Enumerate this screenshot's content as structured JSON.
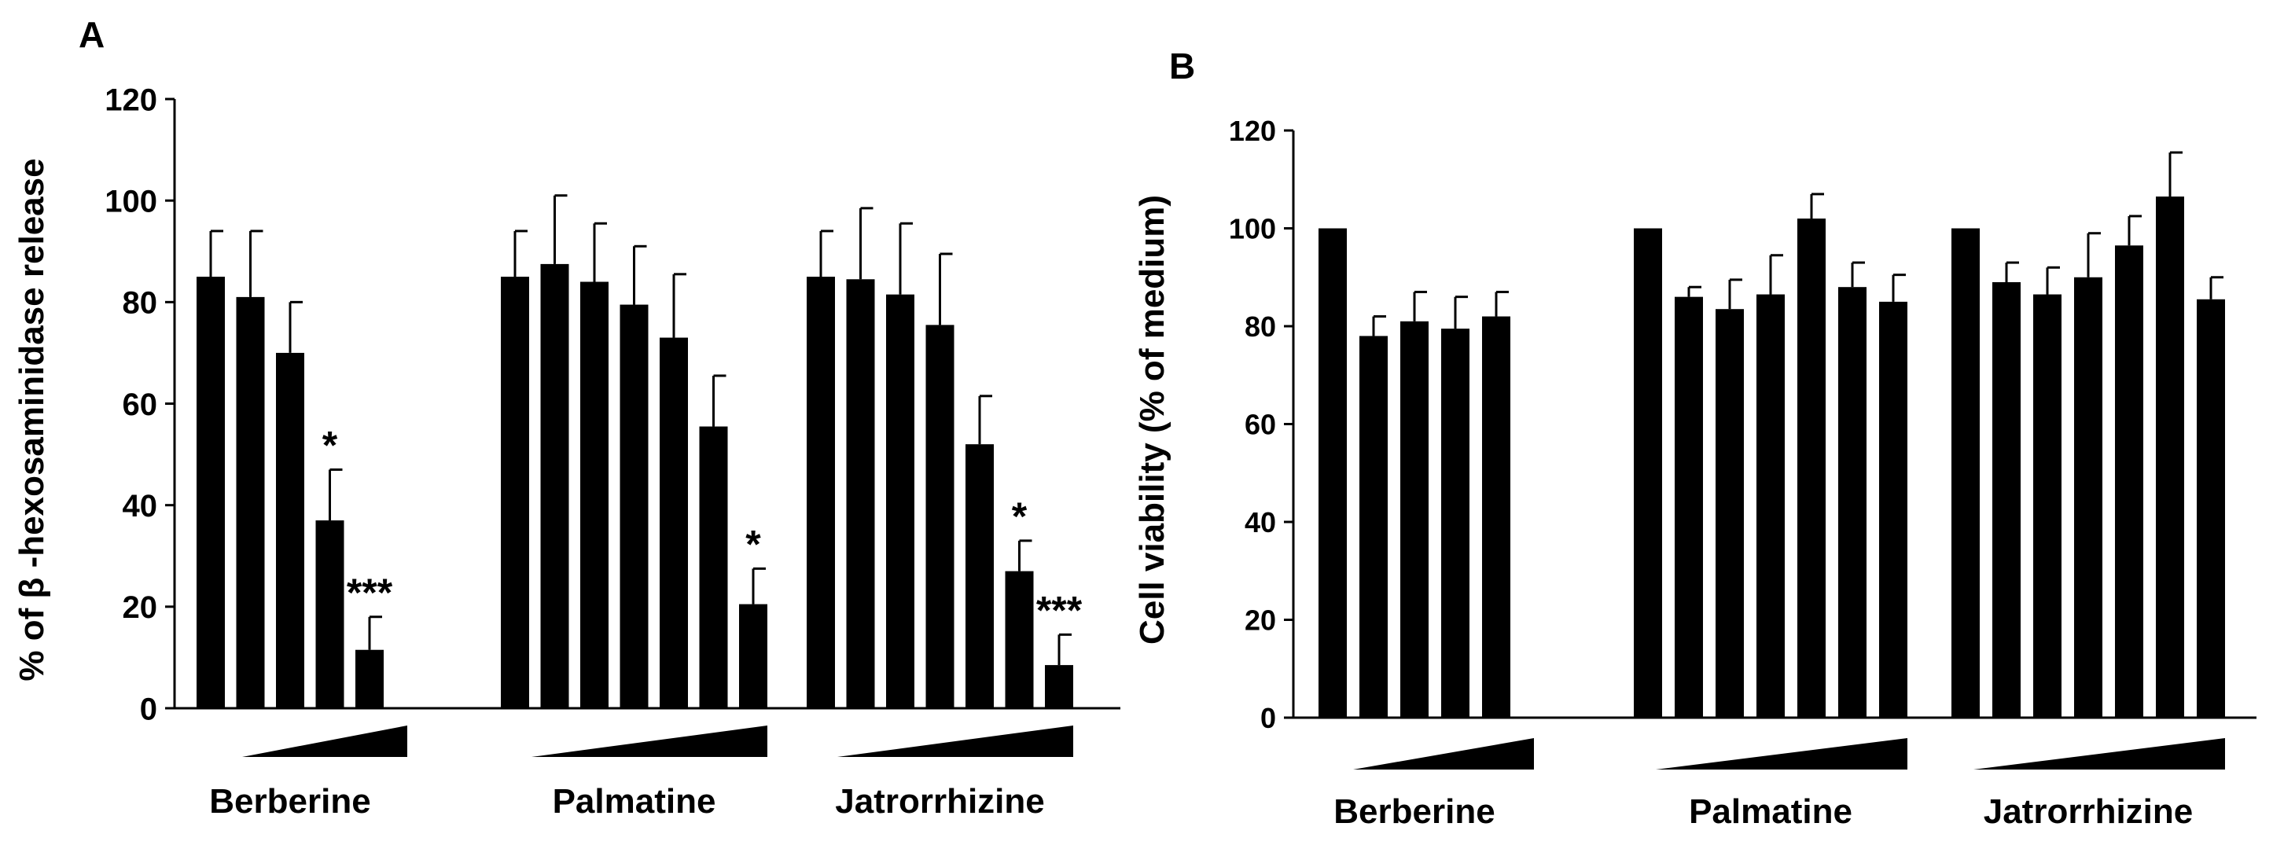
{
  "colors": {
    "bar": "#000000",
    "axis": "#000000",
    "background": "#ffffff"
  },
  "chart_data": [
    {
      "panel_label": "A",
      "type": "bar",
      "ylabel": "% of β -hexosaminidase release",
      "ylim": [
        0,
        120
      ],
      "yticks": [
        "0",
        "20",
        "40",
        "60",
        "80",
        "100",
        "120"
      ],
      "groups": [
        {
          "name": "Berberine",
          "values": [
            85,
            81,
            70,
            37,
            11.5
          ],
          "errors": [
            9,
            13,
            10,
            10,
            6.5
          ],
          "annotations": [
            "",
            "",
            "",
            "*",
            "***"
          ]
        },
        {
          "name": "Palmatine",
          "values": [
            85,
            87.5,
            84,
            79.5,
            73,
            55.5,
            20.5
          ],
          "errors": [
            9,
            13.5,
            11.5,
            11.5,
            12.5,
            10,
            7
          ],
          "annotations": [
            "",
            "",
            "",
            "",
            "",
            "",
            "*"
          ]
        },
        {
          "name": "Jatrorrhizine",
          "values": [
            85,
            84.5,
            81.5,
            75.5,
            52,
            27,
            8.5
          ],
          "errors": [
            9,
            14,
            14,
            14,
            9.5,
            6,
            6
          ],
          "annotations": [
            "",
            "",
            "",
            "",
            "",
            "*",
            "***"
          ]
        }
      ]
    },
    {
      "panel_label": "B",
      "type": "bar",
      "ylabel": "Cell viability (% of medium)",
      "ylim": [
        0,
        120
      ],
      "yticks": [
        "0",
        "20",
        "40",
        "60",
        "80",
        "100",
        "120"
      ],
      "groups": [
        {
          "name": "Berberine",
          "values": [
            100,
            78,
            81,
            79.5,
            82
          ],
          "errors": [
            0,
            4,
            6,
            6.5,
            5
          ]
        },
        {
          "name": "Palmatine",
          "values": [
            100,
            86,
            83.5,
            86.5,
            102,
            88,
            85
          ],
          "errors": [
            0,
            2,
            6,
            8,
            5,
            5,
            5.5
          ]
        },
        {
          "name": "Jatrorrhizine",
          "values": [
            100,
            89,
            86.5,
            90,
            96.5,
            106.5,
            85.5
          ],
          "errors": [
            0,
            4,
            5.5,
            9,
            6,
            9,
            4.5
          ]
        }
      ]
    }
  ]
}
